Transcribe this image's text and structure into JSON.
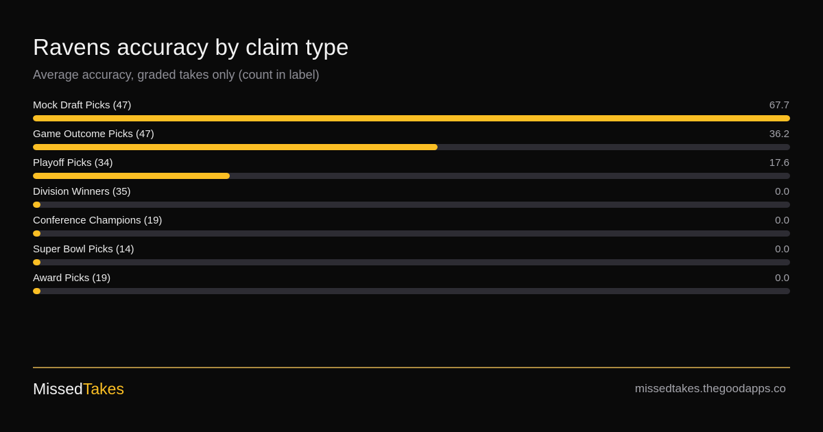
{
  "header": {
    "title": "Ravens accuracy by claim type",
    "subtitle": "Average accuracy, graded takes only (count in label)"
  },
  "colors": {
    "background": "#0a0a0a",
    "accent": "#fbbf24",
    "track": "#2d2c33",
    "muted_text": "#8e8e96"
  },
  "chart_data": {
    "type": "bar",
    "orientation": "horizontal",
    "title": "Ravens accuracy by claim type",
    "subtitle": "Average accuracy, graded takes only (count in label)",
    "xlim": [
      0,
      67.7
    ],
    "grid": false,
    "categories": [
      "Mock Draft Picks (47)",
      "Game Outcome Picks (47)",
      "Playoff Picks (34)",
      "Division Winners (35)",
      "Conference Champions (19)",
      "Super Bowl Picks (14)",
      "Award Picks (19)"
    ],
    "values": [
      67.7,
      36.2,
      17.6,
      0.0,
      0.0,
      0.0,
      0.0
    ],
    "value_labels": [
      "67.7",
      "36.2",
      "17.6",
      "0.0",
      "0.0",
      "0.0",
      "0.0"
    ]
  },
  "footer": {
    "brand_part1": "Missed",
    "brand_part2": "Takes",
    "site": "missedtakes.thegoodapps.co"
  }
}
